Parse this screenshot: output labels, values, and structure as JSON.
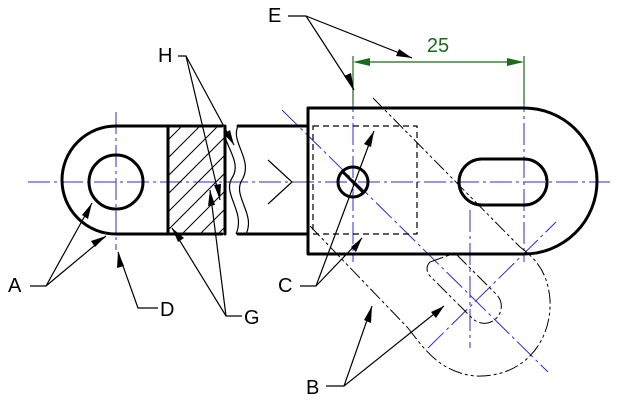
{
  "dimension": {
    "value": "25"
  },
  "labels": {
    "a": "A",
    "b": "B",
    "c": "C",
    "d": "D",
    "e": "E",
    "g": "G",
    "h": "H"
  }
}
